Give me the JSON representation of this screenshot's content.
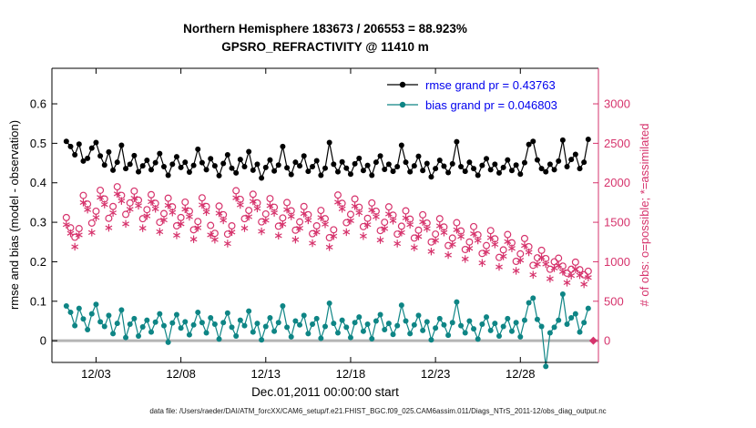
{
  "title_line1": "Northern Hemisphere 183673 / 206553 = 88.923%",
  "title_line2": "GPSRO_REFRACTIVITY @ 11410 m",
  "axes": {
    "left_label": "rmse and bias (model - observation)",
    "right_label": "# of obs: o=possible; *=assimilated",
    "x_label": "Dec.01,2011 00:00:00 start",
    "x_ticks": {
      "values": [
        2,
        7,
        12,
        17,
        22,
        27
      ],
      "labels": [
        "12/03",
        "12/08",
        "12/13",
        "12/18",
        "12/23",
        "12/28"
      ]
    },
    "left_ticks": {
      "values": [
        0,
        0.1,
        0.2,
        0.3,
        0.4,
        0.5,
        0.6
      ],
      "labels": [
        "0",
        "0.1",
        "0.2",
        "0.3",
        "0.4",
        "0.5",
        "0.6"
      ]
    },
    "right_ticks": {
      "values": [
        0,
        500,
        1000,
        1500,
        2000,
        2500,
        3000
      ],
      "labels": [
        "0",
        "500",
        "1000",
        "1500",
        "2000",
        "2500",
        "3000"
      ]
    }
  },
  "legend": [
    {
      "label": "rmse grand pr = 0.43763",
      "color": "#000000",
      "marker": "dot"
    },
    {
      "label": "bias grand pr = 0.046803",
      "color": "#0e8585",
      "marker": "dot"
    }
  ],
  "caption": "data file: /Users/raeder/DAI/ATM_forcXX/CAM6_setup/f.e21.FHIST_BGC.f09_025.CAM6assim.011/Diags_NTrS_2011-12/obs_diag_output.nc",
  "colors": {
    "rmse": "#000000",
    "bias": "#0e8585",
    "obs": "#d6336c",
    "legend_text": "#0000ee",
    "zero_line": "#b5b5b5",
    "axis": "#000000"
  },
  "chart_data": {
    "type": "line+scatter",
    "title": "Northern Hemisphere 183673 / 206553 = 88.923%",
    "subtitle": "GPSRO_REFRACTIVITY @ 11410 m",
    "x_unit": "days since Dec.01,2011 00:00:00",
    "x_start": 0.25,
    "x_step": 0.25,
    "n_points": 124,
    "xlim": [
      -0.6,
      31.6
    ],
    "ylim_left": [
      -0.055,
      0.69
    ],
    "ylim_right": [
      -275,
      3450
    ],
    "right_axis_scale": 5000,
    "stats": {
      "rmse_grand_pr": 0.43763,
      "bias_grand_pr": 0.046803,
      "n_possible": 206553,
      "n_assimilated": 183673,
      "pct_assimilated": 88.923
    },
    "zero_line": 0,
    "series": [
      {
        "name": "possible_obs",
        "axis": "right",
        "color": "#d6336c",
        "marker": "circle",
        "line": false,
        "values": [
          1560,
          1430,
          1310,
          1420,
          1840,
          1730,
          1490,
          1640,
          1905,
          1795,
          1550,
          1700,
          1950,
          1840,
          1600,
          1745,
          1895,
          1780,
          1545,
          1660,
          1850,
          1740,
          1500,
          1610,
          1805,
          1695,
          1455,
          1560,
          1755,
          1640,
          1405,
          1510,
          1810,
          1700,
          1460,
          1360,
          1705,
          1595,
          1350,
          1455,
          1900,
          1790,
          1545,
          1650,
          1855,
          1745,
          1505,
          1605,
          1800,
          1690,
          1450,
          1555,
          1750,
          1645,
          1400,
          1505,
          1700,
          1595,
          1355,
          1455,
          1650,
          1545,
          1305,
          1405,
          1845,
          1740,
          1495,
          1600,
          1795,
          1690,
          1445,
          1550,
          1745,
          1640,
          1395,
          1500,
          1695,
          1590,
          1350,
          1450,
          1645,
          1540,
          1300,
          1400,
          1595,
          1490,
          1250,
          1350,
          1545,
          1440,
          1205,
          1300,
          1495,
          1390,
          1155,
          1250,
          1445,
          1340,
          1105,
          1205,
          1395,
          1290,
          1055,
          1150,
          1345,
          1240,
          1005,
          1100,
          1295,
          1190,
          955,
          1050,
          1145,
          1040,
          905,
          1000,
          1045,
          945,
          855,
          905,
          995,
          900,
          835,
          880
        ]
      },
      {
        "name": "assimilated_obs",
        "axis": "right",
        "color": "#d6336c",
        "marker": "asterisk",
        "line": false,
        "values": [
          1470,
          1360,
          1190,
          1340,
          1750,
          1660,
          1370,
          1560,
          1815,
          1725,
          1430,
          1620,
          1860,
          1770,
          1480,
          1665,
          1805,
          1710,
          1425,
          1580,
          1760,
          1670,
          1380,
          1530,
          1715,
          1625,
          1335,
          1480,
          1665,
          1570,
          1285,
          1430,
          1720,
          1630,
          1340,
          1280,
          1615,
          1525,
          1230,
          1375,
          1810,
          1720,
          1425,
          1570,
          1765,
          1675,
          1385,
          1525,
          1710,
          1620,
          1330,
          1475,
          1660,
          1575,
          1280,
          1425,
          1610,
          1525,
          1235,
          1375,
          1560,
          1475,
          1185,
          1325,
          1755,
          1670,
          1375,
          1520,
          1705,
          1620,
          1325,
          1470,
          1655,
          1570,
          1275,
          1420,
          1605,
          1520,
          1230,
          1370,
          1555,
          1470,
          1180,
          1320,
          1505,
          1420,
          1130,
          1270,
          1455,
          1370,
          1085,
          1220,
          1405,
          1320,
          1035,
          1170,
          1355,
          1270,
          985,
          1125,
          1305,
          1220,
          935,
          1070,
          1255,
          1170,
          885,
          1020,
          1205,
          1120,
          835,
          970,
          1055,
          970,
          785,
          920,
          955,
          875,
          735,
          825,
          905,
          830,
          715,
          800
        ]
      },
      {
        "name": "rmse",
        "axis": "left",
        "color": "#000000",
        "marker": "dot",
        "line": true,
        "values": [
          0.505,
          0.492,
          0.471,
          0.498,
          0.455,
          0.462,
          0.488,
          0.502,
          0.468,
          0.445,
          0.478,
          0.432,
          0.452,
          0.495,
          0.436,
          0.447,
          0.469,
          0.428,
          0.443,
          0.457,
          0.433,
          0.451,
          0.474,
          0.441,
          0.419,
          0.447,
          0.466,
          0.439,
          0.452,
          0.427,
          0.444,
          0.485,
          0.451,
          0.433,
          0.461,
          0.443,
          0.418,
          0.449,
          0.471,
          0.437,
          0.425,
          0.459,
          0.441,
          0.479,
          0.432,
          0.447,
          0.412,
          0.439,
          0.458,
          0.43,
          0.445,
          0.492,
          0.438,
          0.421,
          0.452,
          0.443,
          0.468,
          0.429,
          0.441,
          0.456,
          0.419,
          0.437,
          0.502,
          0.447,
          0.428,
          0.453,
          0.437,
          0.422,
          0.448,
          0.462,
          0.431,
          0.444,
          0.419,
          0.452,
          0.468,
          0.434,
          0.447,
          0.429,
          0.441,
          0.495,
          0.452,
          0.428,
          0.443,
          0.467,
          0.431,
          0.449,
          0.415,
          0.436,
          0.457,
          0.442,
          0.426,
          0.448,
          0.504,
          0.441,
          0.429,
          0.452,
          0.436,
          0.419,
          0.444,
          0.461,
          0.433,
          0.447,
          0.425,
          0.439,
          0.458,
          0.431,
          0.445,
          0.422,
          0.451,
          0.497,
          0.505,
          0.458,
          0.436,
          0.428,
          0.447,
          0.433,
          0.455,
          0.508,
          0.441,
          0.459,
          0.472,
          0.436,
          0.452,
          0.51
        ]
      },
      {
        "name": "bias",
        "axis": "left",
        "color": "#0e8585",
        "marker": "dot",
        "line": true,
        "values": [
          0.088,
          0.072,
          0.038,
          0.082,
          0.055,
          0.028,
          0.068,
          0.092,
          0.048,
          0.036,
          0.064,
          0.018,
          0.044,
          0.078,
          0.008,
          0.042,
          0.056,
          0.012,
          0.035,
          0.052,
          0.022,
          0.047,
          0.068,
          0.038,
          -0.004,
          0.045,
          0.066,
          0.032,
          0.048,
          0.015,
          0.04,
          0.072,
          0.046,
          0.02,
          0.058,
          0.042,
          0.004,
          0.046,
          0.07,
          0.034,
          0.012,
          0.052,
          0.038,
          0.075,
          0.022,
          0.044,
          0.002,
          0.036,
          0.058,
          0.024,
          0.046,
          0.088,
          0.034,
          0.01,
          0.05,
          0.04,
          0.064,
          0.018,
          0.042,
          0.056,
          0.006,
          0.036,
          0.095,
          0.044,
          0.02,
          0.052,
          0.034,
          0.008,
          0.046,
          0.06,
          0.024,
          0.042,
          0.005,
          0.05,
          0.066,
          0.028,
          0.044,
          0.016,
          0.038,
          0.09,
          0.05,
          0.018,
          0.04,
          0.064,
          0.026,
          0.048,
          0.002,
          0.032,
          0.056,
          0.04,
          0.014,
          0.046,
          0.098,
          0.038,
          0.02,
          0.05,
          0.03,
          0.004,
          0.042,
          0.06,
          0.026,
          0.044,
          0.012,
          0.036,
          0.056,
          0.024,
          0.046,
          0.01,
          0.052,
          0.096,
          0.108,
          0.054,
          0.036,
          -0.065,
          0.02,
          0.034,
          0.052,
          0.118,
          0.042,
          0.058,
          0.068,
          0.022,
          0.046,
          0.082
        ]
      }
    ],
    "extra_markers": [
      {
        "x": 31.3,
        "value": 0,
        "axis": "right",
        "marker": "diamond",
        "color": "#d6336c"
      }
    ]
  }
}
